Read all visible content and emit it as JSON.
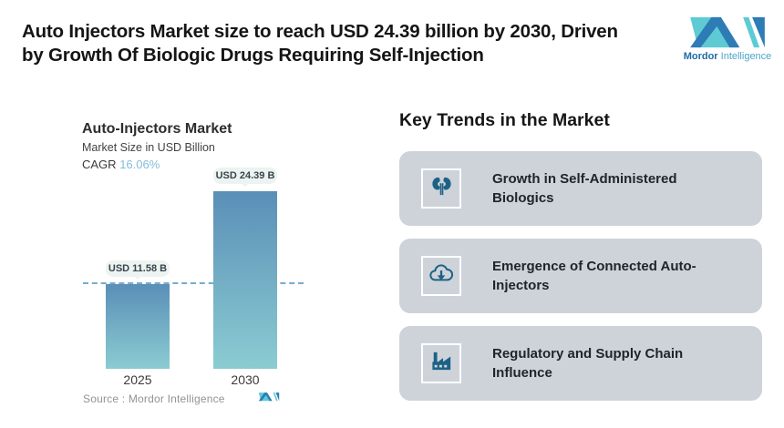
{
  "header": {
    "title_lines": [
      "Auto Injectors Market size to reach USD 24.39 billion by 2030, Driven",
      "by Growth Of Biologic Drugs Requiring Self-Injection"
    ],
    "logo": {
      "brand_bold": "Mordor",
      "brand_light": "Intelligence"
    }
  },
  "chart": {
    "title": "Auto-Injectors Market",
    "subtitle": "Market Size in USD Billion",
    "cagr_label": "CAGR",
    "cagr_value": "16.06%",
    "bars": [
      {
        "year": "2025",
        "label": "USD 11.58 B",
        "value": 11.58
      },
      {
        "year": "2030",
        "label": "USD 24.39 B",
        "value": 24.39
      }
    ],
    "source_label": "Source :  Mordor Intelligence"
  },
  "chart_data": {
    "type": "bar",
    "title": "Auto-Injectors Market",
    "subtitle": "Market Size in USD Billion",
    "cagr": "16.06%",
    "categories": [
      "2025",
      "2030"
    ],
    "values": [
      11.58,
      24.39
    ],
    "unit": "USD Billion",
    "bar_labels": [
      "USD 11.58 B",
      "USD 24.39 B"
    ],
    "reference_line_y": 11.58,
    "legend": false,
    "grid": false,
    "source": "Mordor Intelligence"
  },
  "trends": {
    "heading": "Key Trends in the Market",
    "cards": [
      {
        "icon": "kidneys-icon",
        "label": "Growth in Self-Administered Biologics"
      },
      {
        "icon": "cloud-download-icon",
        "label": "Emergence of Connected Auto-Injectors"
      },
      {
        "icon": "factory-icon",
        "label": "Regulatory and Supply Chain Influence"
      }
    ]
  },
  "colors": {
    "bar_top": "#5a8fb7",
    "bar_bottom": "#8bccd2",
    "dashed_line": "#79abcd",
    "pill_bg": "#edf3f0",
    "card_bg": "#ced3da",
    "icon_blue": "#1d6285",
    "logo_teal": "#5ecbd4",
    "logo_blue": "#2d7cb5",
    "cagr_value": "#85bcd9"
  }
}
